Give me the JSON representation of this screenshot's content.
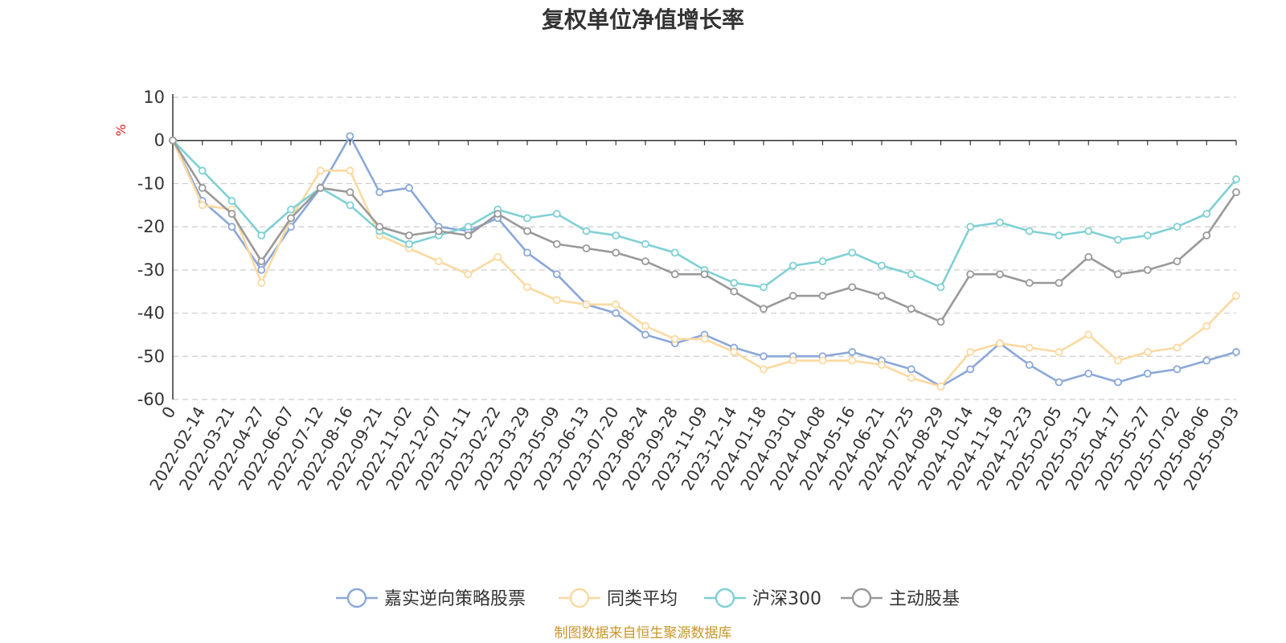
{
  "chart_data": {
    "type": "line",
    "title": "复权单位净值增长率",
    "y_unit": "%",
    "ylim": [
      -60,
      10
    ],
    "y_ticks": [
      10,
      0,
      -10,
      -20,
      -30,
      -40,
      -50,
      -60
    ],
    "grid": true,
    "legend_position": "bottom",
    "x_ticks": [
      "0",
      "2022-02-14",
      "2022-03-21",
      "2022-04-27",
      "2022-06-07",
      "2022-07-12",
      "2022-08-16",
      "2022-09-21",
      "2022-11-02",
      "2022-12-07",
      "2023-01-11",
      "2023-02-22",
      "2023-03-29",
      "2023-05-09",
      "2023-06-13",
      "2023-07-20",
      "2023-08-24",
      "2023-09-28",
      "2023-11-09",
      "2023-12-14",
      "2024-01-18",
      "2024-03-01",
      "2024-04-08",
      "2024-05-16",
      "2024-06-21",
      "2024-07-25",
      "2024-08-29",
      "2024-10-14",
      "2024-11-18",
      "2024-12-23",
      "2025-02-05",
      "2025-03-12",
      "2025-04-17",
      "2025-05-27",
      "2025-07-02",
      "2025-08-06",
      "2025-09-03"
    ],
    "series": [
      {
        "name": "嘉实逆向策略股票",
        "color": "#8ba8d8",
        "values": [
          0,
          -14,
          -20,
          -30,
          -20,
          -11,
          1,
          -12,
          -11,
          -20,
          -21,
          -18,
          -26,
          -31,
          -38,
          -40,
          -45,
          -47,
          -45,
          -48,
          -50,
          -50,
          -50,
          -49,
          -51,
          -53,
          -57,
          -53,
          -47,
          -52,
          -56,
          -54,
          -56,
          -54,
          -53,
          -51,
          -49
        ]
      },
      {
        "name": "同类平均",
        "color": "#fcd9a0",
        "values": [
          0,
          -15,
          -16,
          -33,
          -18,
          -7,
          -7,
          -22,
          -25,
          -28,
          -31,
          -27,
          -34,
          -37,
          -38,
          -38,
          -43,
          -46,
          -46,
          -49,
          -53,
          -51,
          -51,
          -51,
          -52,
          -55,
          -57,
          -49,
          -47,
          -48,
          -49,
          -45,
          -51,
          -49,
          -48,
          -43,
          -36
        ]
      },
      {
        "name": "沪深300",
        "color": "#7fd0d4",
        "values": [
          0,
          -7,
          -14,
          -22,
          -16,
          -11,
          -15,
          -21,
          -24,
          -22,
          -20,
          -16,
          -18,
          -17,
          -21,
          -22,
          -24,
          -26,
          -30,
          -33,
          -34,
          -29,
          -28,
          -26,
          -29,
          -31,
          -34,
          -20,
          -19,
          -21,
          -22,
          -21,
          -23,
          -22,
          -20,
          -17,
          -9
        ]
      },
      {
        "name": "主动股基",
        "color": "#999999",
        "values": [
          0,
          -11,
          -17,
          -28,
          -18,
          -11,
          -12,
          -20,
          -22,
          -21,
          -22,
          -17,
          -21,
          -24,
          -25,
          -26,
          -28,
          -31,
          -31,
          -35,
          -39,
          -36,
          -36,
          -34,
          -36,
          -39,
          -42,
          -31,
          -31,
          -33,
          -33,
          -27,
          -31,
          -30,
          -28,
          -22,
          -12
        ]
      }
    ]
  },
  "source_note": "制图数据来自恒生聚源数据库"
}
